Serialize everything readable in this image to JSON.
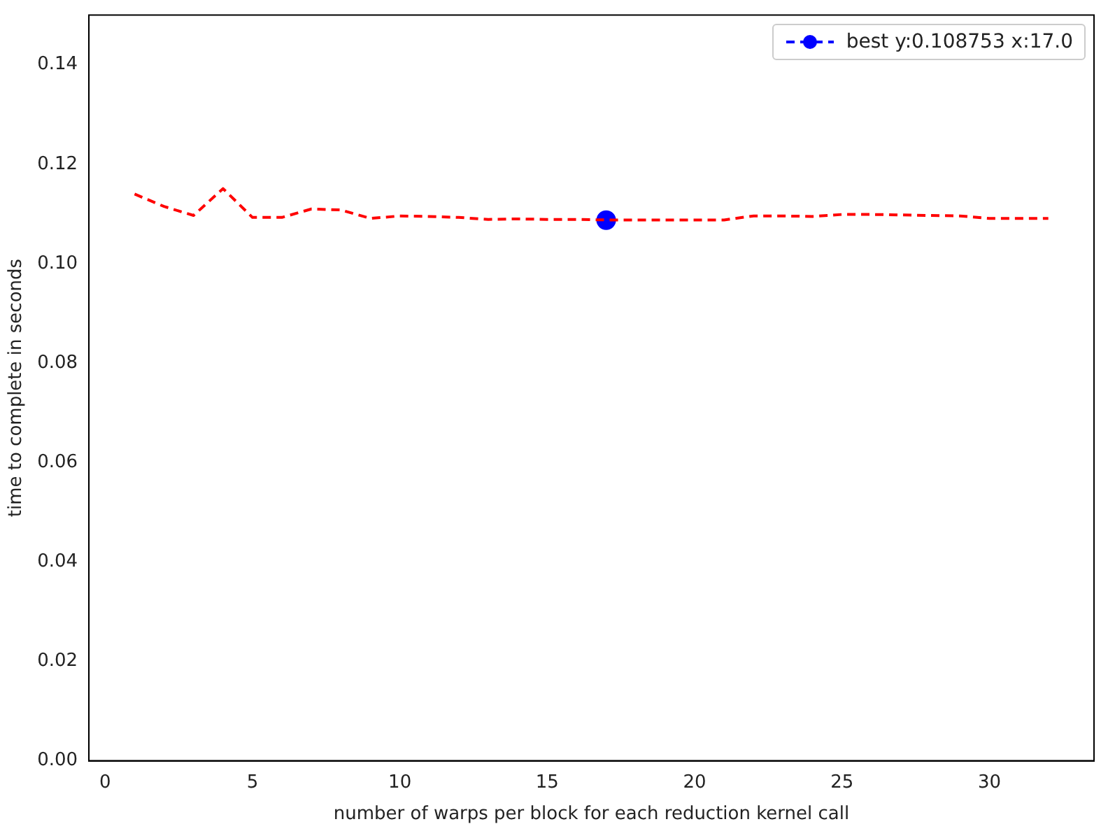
{
  "chart_data": {
    "type": "line",
    "xlabel": "number of warps per block for each reduction kernel call",
    "ylabel": "time to complete in seconds",
    "xlim": [
      -0.55,
      33.55
    ],
    "xticks": [
      0,
      5,
      10,
      15,
      20,
      25,
      30
    ],
    "ylim": [
      0,
      0.15
    ],
    "yticks": [
      {
        "value": 0,
        "label": "0.00"
      },
      {
        "value": 0.02,
        "label": "0.02"
      },
      {
        "value": 0.04,
        "label": "0.04"
      },
      {
        "value": 0.06,
        "label": "0.06"
      },
      {
        "value": 0.08,
        "label": "0.08"
      },
      {
        "value": 0.1,
        "label": "0.10"
      },
      {
        "value": 0.12,
        "label": "0.12"
      },
      {
        "value": 0.14,
        "label": "0.14"
      }
    ],
    "grid": false,
    "legend": "top right",
    "series": [
      {
        "color": "#ff0000",
        "line_style": "dashed",
        "marker": "none",
        "x": [
          1,
          2,
          3,
          4,
          5,
          6,
          7,
          8,
          9,
          10,
          11,
          12,
          13,
          14,
          15,
          16,
          17,
          18,
          19,
          20,
          21,
          22,
          23,
          24,
          25,
          26,
          27,
          28,
          29,
          30,
          31,
          32
        ],
        "values": [
          0.114,
          0.1115,
          0.1097,
          0.1151,
          0.1093,
          0.1093,
          0.111,
          0.1108,
          0.1091,
          0.1096,
          0.1095,
          0.1093,
          0.1089,
          0.109,
          0.1089,
          0.1089,
          0.1088,
          0.1088,
          0.1088,
          0.1088,
          0.1088,
          0.1096,
          0.1096,
          0.1095,
          0.1099,
          0.1099,
          0.1098,
          0.1097,
          0.1096,
          0.1091,
          0.1091,
          0.1091
        ]
      },
      {
        "name": "best y:0.108753 x:17.0",
        "color": "#0000ff",
        "line_style": "dashed",
        "marker": "circle",
        "x": [
          17
        ],
        "values": [
          0.108753
        ]
      }
    ]
  }
}
